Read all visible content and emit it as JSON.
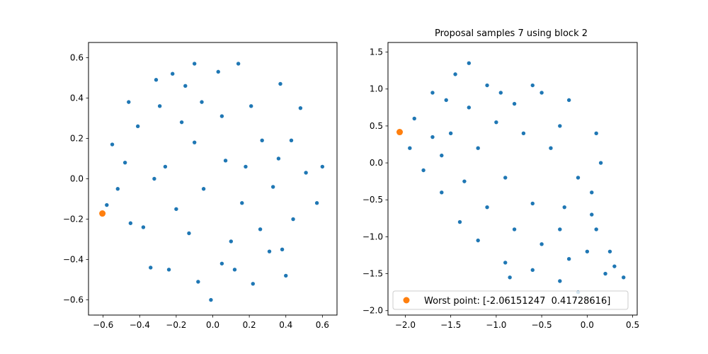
{
  "chart_data": [
    {
      "type": "scatter",
      "title": "",
      "xlabel": "",
      "ylabel": "",
      "xlim": [
        -0.68,
        0.68
      ],
      "ylim": [
        -0.675,
        0.675
      ],
      "xticks": [
        -0.6,
        -0.4,
        -0.2,
        0.0,
        0.2,
        0.4,
        0.6
      ],
      "xtick_labels": [
        "−0.6",
        "−0.4",
        "−0.2",
        "0.0",
        "0.2",
        "0.4",
        "0.6"
      ],
      "yticks": [
        -0.6,
        -0.4,
        -0.2,
        0.0,
        0.2,
        0.4,
        0.6
      ],
      "ytick_labels": [
        "−0.6",
        "−0.4",
        "−0.2",
        "0.0",
        "0.2",
        "0.4",
        "0.6"
      ],
      "grid": false,
      "series": [
        {
          "color": "#1f77b4",
          "points": [
            [
              -0.48,
              0.08
            ],
            [
              -0.45,
              -0.22
            ],
            [
              -0.31,
              0.49
            ],
            [
              -0.1,
              0.18
            ],
            [
              0.05,
              0.31
            ],
            [
              0.21,
              0.36
            ],
            [
              0.36,
              0.1
            ],
            [
              0.51,
              0.03
            ],
            [
              0.44,
              -0.2
            ],
            [
              0.31,
              -0.36
            ],
            [
              0.12,
              -0.45
            ],
            [
              -0.08,
              -0.51
            ],
            [
              -0.24,
              -0.45
            ],
            [
              -0.38,
              -0.24
            ],
            [
              -0.52,
              -0.05
            ],
            [
              -0.26,
              0.06
            ],
            [
              -0.05,
              -0.05
            ],
            [
              0.16,
              -0.12
            ],
            [
              0.27,
              0.19
            ],
            [
              0.03,
              0.53
            ],
            [
              -0.15,
              0.46
            ],
            [
              -0.41,
              0.26
            ],
            [
              -0.55,
              0.17
            ],
            [
              0.6,
              0.06
            ],
            [
              0.57,
              -0.12
            ],
            [
              0.48,
              0.35
            ],
            [
              0.37,
              0.47
            ],
            [
              0.14,
              0.57
            ],
            [
              -0.1,
              0.57
            ],
            [
              -0.22,
              0.52
            ],
            [
              -0.34,
              -0.44
            ],
            [
              0.22,
              -0.52
            ],
            [
              0.4,
              -0.48
            ],
            [
              -0.01,
              -0.6
            ],
            [
              0.1,
              -0.31
            ],
            [
              -0.13,
              -0.27
            ],
            [
              -0.32,
              0.0
            ],
            [
              0.33,
              -0.04
            ],
            [
              0.07,
              0.09
            ],
            [
              -0.17,
              0.28
            ],
            [
              0.43,
              0.19
            ],
            [
              -0.46,
              0.38
            ],
            [
              -0.58,
              -0.13
            ],
            [
              -0.2,
              -0.15
            ],
            [
              0.26,
              -0.25
            ],
            [
              -0.06,
              0.38
            ],
            [
              0.18,
              0.06
            ],
            [
              -0.29,
              0.36
            ],
            [
              0.38,
              -0.35
            ],
            [
              0.05,
              -0.42
            ]
          ]
        },
        {
          "name": "Worst point",
          "color": "#ff7f0e",
          "points": [
            [
              -0.604,
              -0.172
            ]
          ]
        }
      ]
    },
    {
      "type": "scatter",
      "title": "Proposal samples 7 using block 2",
      "xlabel": "",
      "ylabel": "",
      "xlim": [
        -2.19,
        0.55
      ],
      "ylim": [
        -2.06,
        1.63
      ],
      "xticks": [
        -2.0,
        -1.5,
        -1.0,
        -0.5,
        0.0,
        0.5
      ],
      "xtick_labels": [
        "−2.0",
        "−1.5",
        "−1.0",
        "−0.5",
        "0.0",
        "0.5"
      ],
      "yticks": [
        -2.0,
        -1.5,
        -1.0,
        -0.5,
        0.0,
        0.5,
        1.0,
        1.5
      ],
      "ytick_labels": [
        "−2.0",
        "−1.5",
        "−1.0",
        "−0.5",
        "0.0",
        "0.5",
        "1.0",
        "1.5"
      ],
      "grid": false,
      "legend": {
        "position": "lower-left",
        "entries": [
          "Worst point: [-2.06151247  0.41728616]"
        ]
      },
      "series": [
        {
          "color": "#1f77b4",
          "points": [
            [
              -1.9,
              0.6
            ],
            [
              -1.7,
              0.95
            ],
            [
              -1.45,
              1.2
            ],
            [
              -1.3,
              1.35
            ],
            [
              -1.1,
              1.05
            ],
            [
              -0.8,
              0.8
            ],
            [
              -0.5,
              0.95
            ],
            [
              -0.2,
              0.85
            ],
            [
              0.1,
              0.4
            ],
            [
              0.15,
              0.0
            ],
            [
              0.05,
              -0.4
            ],
            [
              0.1,
              -0.9
            ],
            [
              0.25,
              -1.2
            ],
            [
              0.4,
              -1.55
            ],
            [
              0.2,
              -1.5
            ],
            [
              -0.1,
              -1.75
            ],
            [
              -0.3,
              -1.6
            ],
            [
              -0.6,
              -1.45
            ],
            [
              -0.9,
              -1.35
            ],
            [
              -1.2,
              -1.05
            ],
            [
              -1.4,
              -0.8
            ],
            [
              -1.6,
              -0.4
            ],
            [
              -1.8,
              -0.1
            ],
            [
              -1.95,
              0.2
            ],
            [
              -1.5,
              0.4
            ],
            [
              -1.2,
              0.2
            ],
            [
              -0.9,
              -0.2
            ],
            [
              -0.6,
              -0.55
            ],
            [
              -0.3,
              -0.9
            ],
            [
              0.0,
              -1.2
            ],
            [
              -0.7,
              0.4
            ],
            [
              -1.0,
              0.55
            ],
            [
              -1.3,
              0.75
            ],
            [
              -1.6,
              0.1
            ],
            [
              -0.4,
              0.2
            ],
            [
              -0.1,
              -0.2
            ],
            [
              -0.8,
              -0.9
            ],
            [
              -1.1,
              -0.6
            ],
            [
              -0.5,
              -1.1
            ],
            [
              -0.2,
              -1.3
            ],
            [
              -1.7,
              0.35
            ],
            [
              -1.35,
              -0.25
            ],
            [
              -0.95,
              0.95
            ],
            [
              -0.6,
              1.05
            ],
            [
              -0.3,
              0.5
            ],
            [
              0.05,
              -0.7
            ],
            [
              -1.55,
              0.85
            ],
            [
              -0.25,
              -0.6
            ],
            [
              -0.85,
              -1.55
            ],
            [
              0.3,
              -1.4
            ]
          ]
        },
        {
          "name": "Worst point",
          "color": "#ff7f0e",
          "points": [
            [
              -2.06151247,
              0.41728616
            ]
          ]
        }
      ]
    }
  ]
}
